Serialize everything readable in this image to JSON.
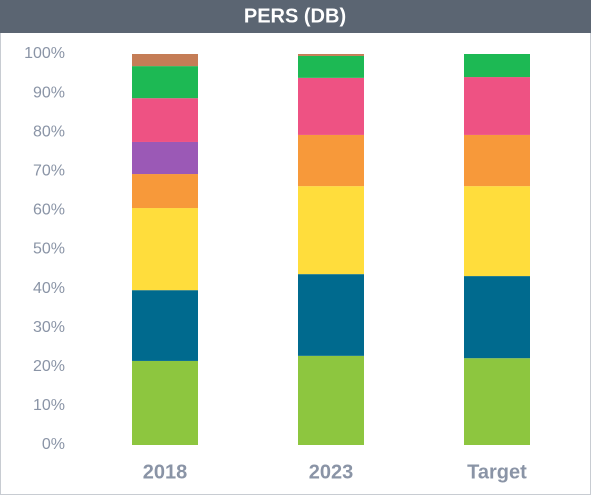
{
  "chart_data": {
    "type": "stacked_bar",
    "title": "PERS (DB)",
    "categories": [
      "2018",
      "2023",
      "Target"
    ],
    "series": [
      {
        "color": "#8dc63f",
        "values": [
          21.5,
          22.8,
          22.2
        ]
      },
      {
        "color": "#006a8e",
        "values": [
          18.1,
          20.9,
          21.0
        ]
      },
      {
        "color": "#ffdd3c",
        "values": [
          21.0,
          22.5,
          23.0
        ]
      },
      {
        "color": "#f7993a",
        "values": [
          8.7,
          13.1,
          13.1
        ]
      },
      {
        "color": "#9b59b6",
        "values": [
          8.2,
          0,
          0
        ]
      },
      {
        "color": "#ee5283",
        "values": [
          11.2,
          14.6,
          14.8
        ]
      },
      {
        "color": "#1db954",
        "values": [
          8.2,
          5.6,
          5.9
        ]
      },
      {
        "color": "#c57d56",
        "values": [
          3.1,
          0.5,
          0
        ]
      }
    ],
    "ylim": [
      0,
      100
    ],
    "yticks": [
      {
        "value": 0,
        "label": "0%"
      },
      {
        "value": 10,
        "label": "10%"
      },
      {
        "value": 20,
        "label": "20%"
      },
      {
        "value": 30,
        "label": "30%"
      },
      {
        "value": 40,
        "label": "40%"
      },
      {
        "value": 50,
        "label": "50%"
      },
      {
        "value": 60,
        "label": "60%"
      },
      {
        "value": 70,
        "label": "70%"
      },
      {
        "value": 80,
        "label": "80%"
      },
      {
        "value": 90,
        "label": "90%"
      },
      {
        "value": 100,
        "label": "100%"
      }
    ],
    "grid": false
  }
}
